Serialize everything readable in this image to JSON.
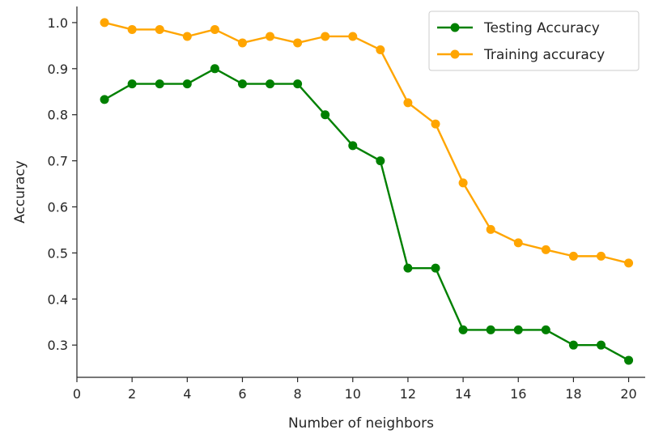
{
  "chart_data": {
    "type": "line",
    "xlabel": "Number of neighbors",
    "ylabel": "Accuracy",
    "xlim": [
      0,
      20.6
    ],
    "ylim": [
      0.23,
      1.035
    ],
    "xticks": [
      "0",
      "2",
      "4",
      "6",
      "8",
      "10",
      "12",
      "14",
      "16",
      "18",
      "20"
    ],
    "yticks": [
      "0.3",
      "0.4",
      "0.5",
      "0.6",
      "0.7",
      "0.8",
      "0.9",
      "1.0"
    ],
    "grid": false,
    "legend_position": "upper-right",
    "x": [
      1,
      2,
      3,
      4,
      5,
      6,
      7,
      8,
      9,
      10,
      11,
      12,
      13,
      14,
      15,
      16,
      17,
      18,
      19,
      20
    ],
    "series": [
      {
        "name": "Testing Accuracy",
        "color": "#008000",
        "values": [
          0.833,
          0.867,
          0.867,
          0.867,
          0.9,
          0.867,
          0.867,
          0.867,
          0.8,
          0.733,
          0.7,
          0.467,
          0.467,
          0.333,
          0.333,
          0.333,
          0.333,
          0.3,
          0.3,
          0.267
        ]
      },
      {
        "name": "Training accuracy",
        "color": "#ffa500",
        "values": [
          1.0,
          0.985,
          0.985,
          0.97,
          0.985,
          0.956,
          0.97,
          0.956,
          0.97,
          0.97,
          0.941,
          0.826,
          0.78,
          0.652,
          0.551,
          0.522,
          0.507,
          0.493,
          0.493,
          0.478
        ]
      }
    ]
  }
}
